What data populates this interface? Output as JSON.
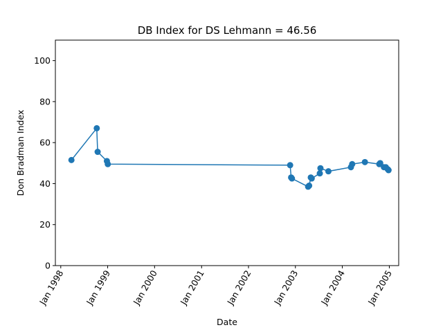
{
  "chart_data": {
    "type": "line",
    "title": "DB Index for DS Lehmann = 46.56",
    "xlabel": "Date",
    "ylabel": "Don Bradman Index",
    "ylim": [
      0,
      110
    ],
    "xlim": [
      "1997-11-20",
      "2005-03-15"
    ],
    "grid": false,
    "legend": "none",
    "x_ticks": [
      "Jan 1998",
      "Jan 1999",
      "Jan 2000",
      "Jan 2001",
      "Jan 2002",
      "Jan 2003",
      "Jan 2004",
      "Jan 2005"
    ],
    "x_tick_dates": [
      "1998-01-01",
      "1999-01-01",
      "2000-01-01",
      "2001-01-01",
      "2002-01-01",
      "2003-01-01",
      "2004-01-01",
      "2005-01-01"
    ],
    "y_ticks": [
      0,
      20,
      40,
      60,
      80,
      100
    ],
    "marker": "circle",
    "color": "#1f77b4",
    "series": [
      {
        "x": [
          "1998-03-25",
          "1998-10-08",
          "1998-10-15",
          "1998-12-26",
          "1999-01-02",
          "2002-11-21",
          "2002-11-29",
          "2002-12-05",
          "2003-04-10",
          "2003-04-18",
          "2003-05-01",
          "2003-05-08",
          "2003-07-10",
          "2003-07-15",
          "2003-09-15",
          "2004-03-08",
          "2004-03-18",
          "2004-06-25",
          "2004-10-15",
          "2004-10-22",
          "2004-11-20",
          "2004-12-05",
          "2004-12-20",
          "2004-12-26"
        ],
        "y": [
          51.5,
          67.0,
          55.5,
          51.0,
          49.5,
          49.0,
          43.0,
          42.5,
          38.5,
          39.0,
          43.0,
          42.5,
          45.0,
          47.5,
          46.0,
          48.0,
          49.5,
          50.5,
          49.5,
          50.0,
          48.0,
          48.0,
          47.0,
          46.56
        ]
      }
    ]
  }
}
